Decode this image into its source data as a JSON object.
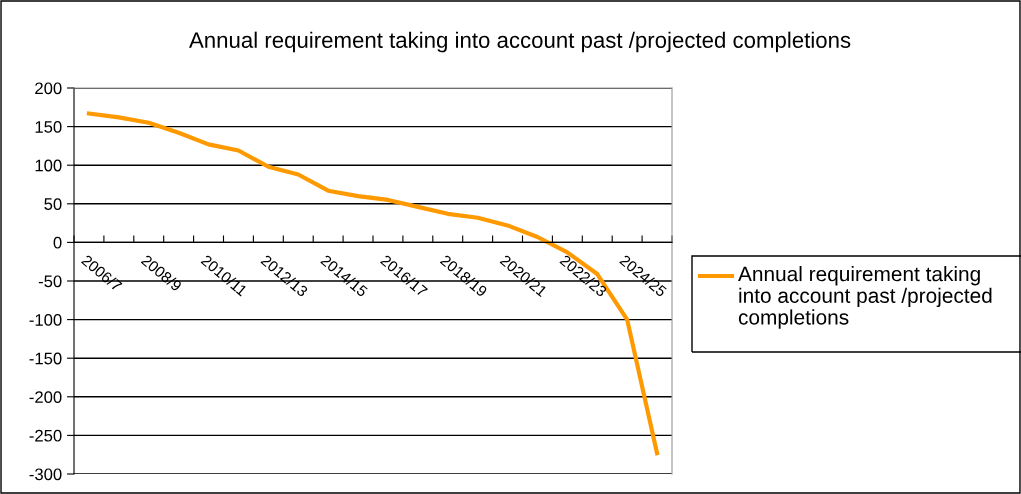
{
  "chart_data": {
    "type": "line",
    "title": "Annual requirement taking into account past /projected completions",
    "categories": [
      "2006/7",
      null,
      "2008/9",
      null,
      "2010/11",
      null,
      "2012/13",
      null,
      "2014/15",
      null,
      "2016/17",
      null,
      "2018/19",
      null,
      "2020/21",
      null,
      "2022/23",
      null,
      "2024/25",
      null
    ],
    "series": [
      {
        "name": "Annual requirement taking into account past /projected completions",
        "color": "#ff9900",
        "values": [
          167,
          162,
          155,
          142,
          127,
          119,
          98,
          88,
          67,
          60,
          55,
          46,
          37,
          32,
          22,
          7,
          -13,
          -41,
          -100,
          -273
        ]
      }
    ],
    "ylim": [
      -300,
      200
    ],
    "yticks": [
      -300,
      -250,
      -200,
      -150,
      -100,
      -50,
      0,
      50,
      100,
      150,
      200
    ],
    "grid": "y",
    "legend": "right",
    "marker": "none",
    "line_style": "solid"
  }
}
